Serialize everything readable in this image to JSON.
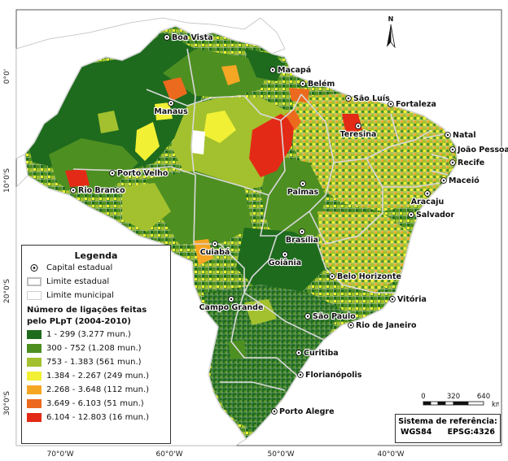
{
  "legend": {
    "title": "Legenda",
    "capital_label": "Capital estadual",
    "state_limit_label": "Limite estadual",
    "municipal_limit_label": "Limite municipal",
    "heading": "Número de ligações feitas pelo PLpT (2004-2010)",
    "classes": [
      {
        "label": "1 - 299 (3.277 mun.)",
        "color": "#1e6b1e"
      },
      {
        "label": "300 - 752 (1.208 mun.)",
        "color": "#4e8f22"
      },
      {
        "label": "753 - 1.383 (561 mun.)",
        "color": "#a3c12e"
      },
      {
        "label": "1.384 - 2.267 (249 mun.)",
        "color": "#f2f034"
      },
      {
        "label": "2.268 - 3.648 (112 mun.)",
        "color": "#f5a623"
      },
      {
        "label": "3.649 - 6.103 (51 mun.)",
        "color": "#ec6a1d"
      },
      {
        "label": "6.104 - 12.803 (16 mun.)",
        "color": "#e32a16"
      }
    ]
  },
  "axes": {
    "lat_labels": [
      "0°0'",
      "10°0'S",
      "20°0'S",
      "30°0'S"
    ],
    "lon_labels": [
      "70°0'W",
      "60°0'W",
      "50°0'W",
      "40°0'W"
    ]
  },
  "cities": [
    "Boa Vista",
    "Macapá",
    "Belém",
    "São Luís",
    "Fortaleza",
    "Manaus",
    "Teresina",
    "Natal",
    "João Pessoa",
    "Recife",
    "Porto Velho",
    "Maceió",
    "Rio Branco",
    "Aracaju",
    "Palmas",
    "Salvador",
    "Brasília",
    "Goiânia",
    "Cuiabá",
    "Belo Horizonte",
    "Vitória",
    "Campo Grande",
    "São Paulo",
    "Rio de Janeiro",
    "Curitiba",
    "Florianópolis",
    "Porto Alegre"
  ],
  "scale": {
    "labels": [
      "0",
      "320",
      "640"
    ],
    "unit": "km"
  },
  "reference": {
    "title": "Sistema de referência:",
    "datum": "WGS84",
    "epsg": "EPSG:4326"
  },
  "north_label": "N"
}
